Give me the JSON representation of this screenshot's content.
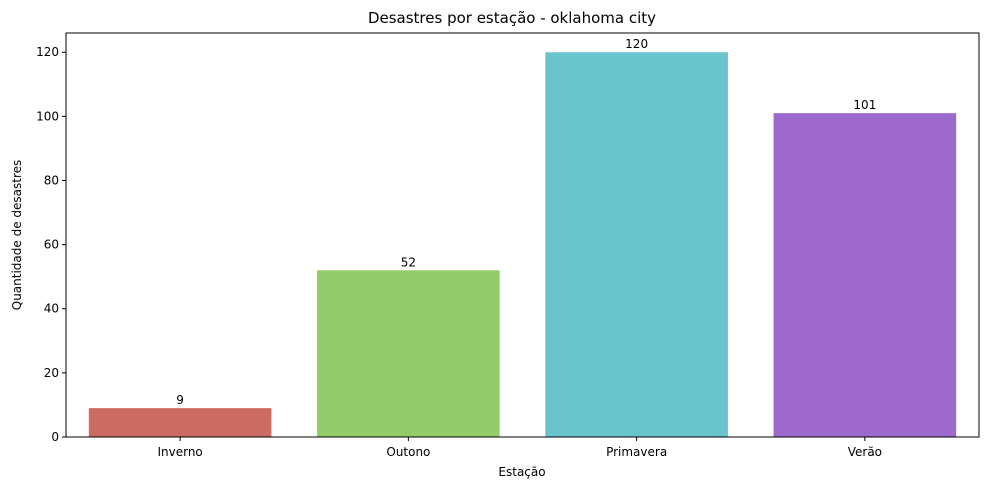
{
  "chart_data": {
    "type": "bar",
    "title": "Desastres por estação - oklahoma city",
    "xlabel": "Estação",
    "ylabel": "Quantidade de desastres",
    "categories": [
      "Inverno",
      "Outono",
      "Primavera",
      "Verão"
    ],
    "values": [
      9,
      52,
      120,
      101
    ],
    "colors": [
      "#cc6b62",
      "#93cd69",
      "#69c4cc",
      "#9d69cc"
    ],
    "ylim": [
      0,
      126
    ],
    "yticks": [
      0,
      20,
      40,
      60,
      80,
      100,
      120
    ],
    "grid": false,
    "legend": "none"
  }
}
